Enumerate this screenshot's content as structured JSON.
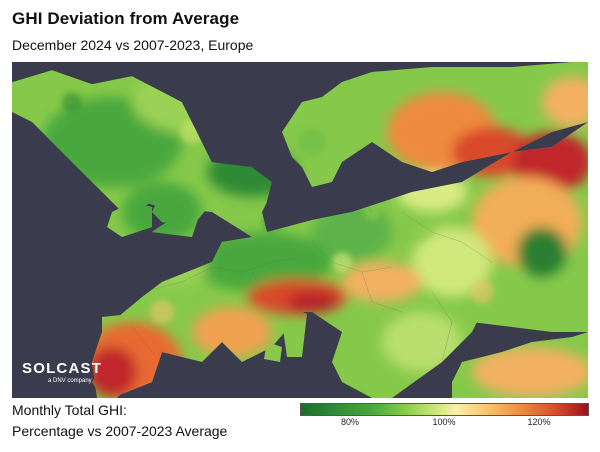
{
  "header": {
    "title": "GHI Deviation from Average",
    "subtitle": "December 2024 vs 2007-2023, Europe"
  },
  "logo": {
    "name": "SOLCAST",
    "tagline": "a DNV company"
  },
  "legend": {
    "caption_line1": "Monthly Total GHI:",
    "caption_line2": "Percentage vs 2007-2023 Average",
    "ticks": [
      "80%",
      "100%",
      "120%"
    ],
    "colors": [
      "#1b6d2a",
      "#4aa83c",
      "#d9eb84",
      "#fbf0a8",
      "#ee8a3e",
      "#9e0e1d"
    ]
  },
  "map": {
    "ocean_color": "#3a3b4d",
    "region": "Europe"
  }
}
